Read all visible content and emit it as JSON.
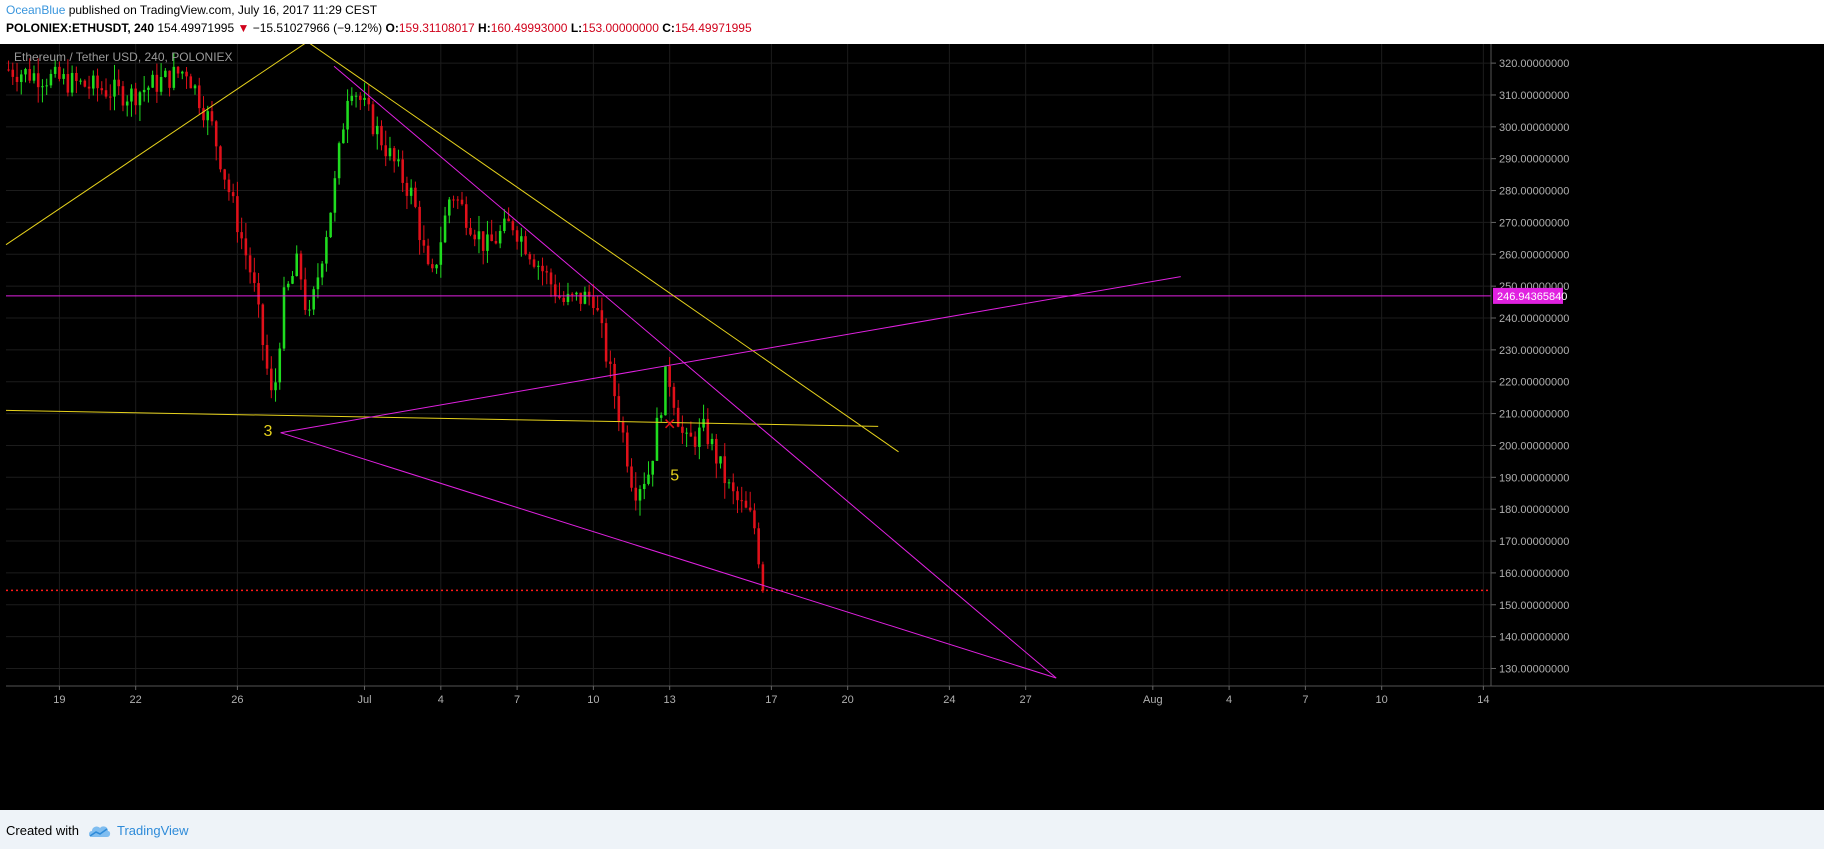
{
  "header": {
    "author": "OceanBlue",
    "published_text": " published on TradingView.com, July 16, 2017 11:29 CEST",
    "symbol": "POLONIEX:ETHUSDT, 240",
    "last": "154.49971995",
    "arrow": "▼",
    "change": "−15.51027966 (−9.12%)",
    "o_label": "O:",
    "o_value": "159.31108017",
    "h_label": "H:",
    "h_value": "160.49993000",
    "l_label": "L:",
    "l_value": "153.00000000",
    "c_label": "C:",
    "c_value": "154.49971995"
  },
  "footer": {
    "created_label": "Created with",
    "brand": "TradingView"
  },
  "colors": {
    "background": "#000000",
    "up": "#1fdc1f",
    "down": "#e0101a",
    "magenta": "#e021e0",
    "yellow": "#e6d21c",
    "price_line": "#ff1a1a",
    "label_bg": "#e021e0"
  },
  "chart_data": {
    "type": "candlestick",
    "title": "Ethereum / Tether USD, 240, POLONIEX",
    "ylim": [
      124.5,
      326
    ],
    "y_ticks": [
      "130.00000000",
      "140.00000000",
      "150.00000000",
      "160.00000000",
      "170.00000000",
      "180.00000000",
      "190.00000000",
      "200.00000000",
      "210.00000000",
      "220.00000000",
      "230.00000000",
      "240.00000000",
      "250.00000000",
      "260.00000000",
      "270.00000000",
      "280.00000000",
      "290.00000000",
      "300.00000000",
      "310.00000000",
      "320.00000000"
    ],
    "x_ticks": [
      {
        "label": "19",
        "day": -11
      },
      {
        "label": "22",
        "day": -8
      },
      {
        "label": "26",
        "day": -4
      },
      {
        "label": "Jul",
        "day": 1
      },
      {
        "label": "4",
        "day": 4
      },
      {
        "label": "7",
        "day": 7
      },
      {
        "label": "10",
        "day": 10
      },
      {
        "label": "13",
        "day": 13
      },
      {
        "label": "17",
        "day": 17
      },
      {
        "label": "20",
        "day": 20
      },
      {
        "label": "24",
        "day": 24
      },
      {
        "label": "27",
        "day": 27
      },
      {
        "label": "Aug",
        "day": 32
      },
      {
        "label": "4",
        "day": 35
      },
      {
        "label": "7",
        "day": 38
      },
      {
        "label": "10",
        "day": 41
      },
      {
        "label": "14",
        "day": 45
      }
    ],
    "xlim_days": [
      -13.1,
      45.3
    ],
    "price_label": "246.94365840",
    "current_price": 154.5,
    "key_points": [
      {
        "day": -13,
        "price": 318
      },
      {
        "day": -8.2,
        "price": 310
      },
      {
        "day": -6,
        "price": 318
      },
      {
        "day": -5,
        "price": 300
      },
      {
        "day": -3.4,
        "price": 252
      },
      {
        "day": -2.6,
        "price": 212
      },
      {
        "day": -2.2,
        "price": 245
      },
      {
        "day": -1.6,
        "price": 258
      },
      {
        "day": -1.2,
        "price": 238
      },
      {
        "day": -0.2,
        "price": 280
      },
      {
        "day": 0.4,
        "price": 315
      },
      {
        "day": 2.2,
        "price": 288
      },
      {
        "day": 2.9,
        "price": 278
      },
      {
        "day": 3.6,
        "price": 250
      },
      {
        "day": 4.4,
        "price": 280
      },
      {
        "day": 5.8,
        "price": 262
      },
      {
        "day": 6.8,
        "price": 270
      },
      {
        "day": 8.8,
        "price": 245
      },
      {
        "day": 10,
        "price": 247
      },
      {
        "day": 11,
        "price": 210
      },
      {
        "day": 11.6,
        "price": 186
      },
      {
        "day": 12.2,
        "price": 192
      },
      {
        "day": 12.9,
        "price": 224
      },
      {
        "day": 13.6,
        "price": 200
      },
      {
        "day": 14.4,
        "price": 205
      },
      {
        "day": 15.4,
        "price": 185
      },
      {
        "day": 16.3,
        "price": 176
      },
      {
        "day": 16.7,
        "price": 155
      }
    ],
    "drawings": [
      {
        "kind": "horizontal",
        "color": "magenta",
        "price": 246.94
      },
      {
        "kind": "dotted",
        "color": "red",
        "price": 154.5
      },
      {
        "kind": "trend",
        "color": "yellow",
        "from": {
          "day": -13.1,
          "price": 263
        },
        "to": {
          "day": -1.0,
          "price": 328
        }
      },
      {
        "kind": "trend",
        "color": "yellow",
        "from": {
          "day": -1.3,
          "price": 327
        },
        "to": {
          "day": 22.0,
          "price": 198
        }
      },
      {
        "kind": "trend",
        "color": "yellow",
        "from": {
          "day": -13.1,
          "price": 211
        },
        "to": {
          "day": 21.2,
          "price": 206
        }
      },
      {
        "kind": "trend",
        "color": "magenta",
        "from": {
          "day": -0.2,
          "price": 319
        },
        "to": {
          "day": 28.2,
          "price": 127
        }
      },
      {
        "kind": "trend",
        "color": "magenta",
        "from": {
          "day": -2.3,
          "price": 204
        },
        "to": {
          "day": 28.2,
          "price": 127
        }
      },
      {
        "kind": "trend",
        "color": "magenta",
        "from": {
          "day": -2.3,
          "price": 204
        },
        "to": {
          "day": 33.1,
          "price": 253
        }
      }
    ],
    "annotations": [
      {
        "text": "3",
        "day": -2.8,
        "price": 203
      },
      {
        "text": "5",
        "day": 13.2,
        "price": 189
      }
    ],
    "markers": [
      {
        "text": "✕",
        "day": 13.0,
        "price": 205
      }
    ]
  }
}
